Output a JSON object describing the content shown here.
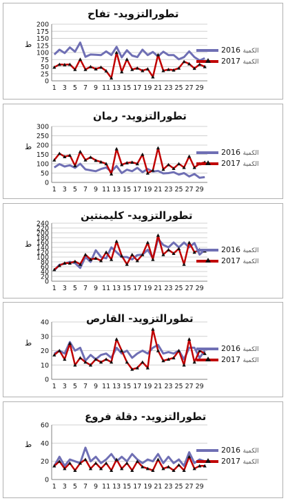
{
  "legend_label": "الكمية",
  "chart_data": [
    {
      "type": "line",
      "title": "تطورالتزويد- تفاح",
      "ylabel": "ط",
      "ylim": [
        0,
        200
      ],
      "yticks": [
        0,
        25,
        50,
        75,
        100,
        125,
        150,
        175,
        200
      ],
      "x": [
        1,
        2,
        3,
        4,
        5,
        6,
        7,
        8,
        9,
        10,
        11,
        12,
        13,
        14,
        15,
        16,
        17,
        18,
        19,
        20,
        21,
        22,
        23,
        24,
        25,
        26,
        27,
        28,
        29,
        30
      ],
      "xticks": [
        1,
        3,
        5,
        7,
        9,
        11,
        13,
        15,
        17,
        19,
        21,
        23,
        25,
        27,
        29
      ],
      "series": [
        {
          "name": "2016",
          "color": "#6f6fb4",
          "values": [
            93,
            110,
            98,
            118,
            103,
            135,
            85,
            93,
            92,
            91,
            104,
            91,
            120,
            83,
            108,
            89,
            84,
            110,
            91,
            102,
            86,
            103,
            91,
            91,
            76,
            84,
            104,
            84,
            72,
            80
          ]
        },
        {
          "name": "2017",
          "color": "#c00000",
          "marker": "triangle",
          "values": [
            48,
            58,
            57,
            58,
            40,
            76,
            40,
            50,
            42,
            48,
            35,
            10,
            100,
            32,
            76,
            40,
            45,
            36,
            42,
            14,
            92,
            36,
            40,
            38,
            45,
            68,
            60,
            44,
            58,
            50
          ]
        }
      ]
    },
    {
      "type": "line",
      "title": "تطورالتزويد- رمان",
      "ylabel": "ط",
      "ylim": [
        0,
        300
      ],
      "yticks": [
        0,
        50,
        100,
        150,
        200,
        250,
        300
      ],
      "x": [
        1,
        2,
        3,
        4,
        5,
        6,
        7,
        8,
        9,
        10,
        11,
        12,
        13,
        14,
        15,
        16,
        17,
        18,
        19,
        20,
        21,
        22,
        23,
        24,
        25,
        26,
        27,
        28,
        29,
        30
      ],
      "xticks": [
        1,
        3,
        5,
        7,
        9,
        11,
        13,
        15,
        17,
        19,
        21,
        23,
        25,
        27,
        29
      ],
      "series": [
        {
          "name": "2016",
          "color": "#6f6fb4",
          "values": [
            80,
            98,
            85,
            92,
            78,
            100,
            70,
            65,
            60,
            72,
            80,
            58,
            88,
            50,
            68,
            60,
            78,
            55,
            72,
            58,
            62,
            48,
            50,
            55,
            42,
            50,
            32,
            45,
            25,
            28
          ]
        },
        {
          "name": "2017",
          "color": "#c00000",
          "marker": "triangle",
          "values": [
            120,
            155,
            138,
            145,
            90,
            165,
            120,
            135,
            118,
            110,
            100,
            45,
            180,
            95,
            105,
            108,
            100,
            150,
            50,
            65,
            185,
            70,
            95,
            75,
            100,
            80,
            140,
            80,
            100,
            108
          ]
        }
      ]
    },
    {
      "type": "line",
      "title": "تطورالتزويد- كليمنتين",
      "ylabel": "ط",
      "ylim": [
        0,
        240
      ],
      "yticks": [
        0,
        20,
        40,
        60,
        80,
        100,
        120,
        140,
        160,
        180,
        200,
        220,
        240
      ],
      "x": [
        1,
        2,
        3,
        4,
        5,
        6,
        7,
        8,
        9,
        10,
        11,
        12,
        13,
        14,
        15,
        16,
        17,
        18,
        19,
        20,
        21,
        22,
        23,
        24,
        25,
        26,
        27,
        28,
        29,
        30
      ],
      "xticks": [
        1,
        3,
        5,
        7,
        9,
        11,
        13,
        15,
        17,
        19,
        21,
        23,
        25,
        27,
        29
      ],
      "series": [
        {
          "name": "2016",
          "color": "#6f6fb4",
          "values": [
            45,
            68,
            72,
            80,
            75,
            55,
            100,
            80,
            128,
            100,
            95,
            140,
            120,
            100,
            100,
            90,
            108,
            110,
            130,
            95,
            175,
            150,
            140,
            160,
            140,
            160,
            140,
            158,
            110,
            130
          ]
        },
        {
          "name": "2017",
          "color": "#c00000",
          "marker": "triangle",
          "values": [
            48,
            65,
            75,
            75,
            82,
            70,
            110,
            90,
            95,
            85,
            120,
            90,
            165,
            105,
            70,
            110,
            85,
            110,
            160,
            90,
            190,
            110,
            130,
            115,
            135,
            70,
            160,
            120,
            130,
            125
          ]
        }
      ]
    },
    {
      "type": "line",
      "title": "تطورالتزويد- القارص",
      "ylabel": "ط",
      "ylim": [
        0,
        40
      ],
      "yticks": [
        0,
        10,
        20,
        30,
        40
      ],
      "x": [
        1,
        2,
        3,
        4,
        5,
        6,
        7,
        8,
        9,
        10,
        11,
        12,
        13,
        14,
        15,
        16,
        17,
        18,
        19,
        20,
        21,
        22,
        23,
        24,
        25,
        26,
        27,
        28,
        29,
        30
      ],
      "xticks": [
        1,
        3,
        5,
        7,
        9,
        11,
        13,
        15,
        17,
        19,
        21,
        23,
        25,
        27,
        29
      ],
      "series": [
        {
          "name": "2016",
          "color": "#6f6fb4",
          "values": [
            18,
            20,
            18,
            26,
            20,
            22,
            13,
            17,
            14,
            17,
            18,
            15,
            22,
            18,
            20,
            15,
            18,
            20,
            18,
            22,
            24,
            18,
            19,
            18,
            20,
            14,
            22,
            22,
            15,
            20
          ]
        },
        {
          "name": "2017",
          "color": "#c00000",
          "marker": "triangle",
          "values": [
            17,
            20,
            14,
            25,
            10,
            15,
            12,
            10,
            14,
            12,
            14,
            12,
            28,
            20,
            12,
            7,
            8,
            12,
            8,
            35,
            20,
            13,
            14,
            15,
            20,
            10,
            28,
            12,
            20,
            18
          ]
        }
      ]
    },
    {
      "type": "line",
      "title": "تطورالتزويد- دقلة فروع",
      "ylabel": "ط",
      "ylim": [
        0,
        60
      ],
      "yticks": [
        0,
        20,
        40,
        60
      ],
      "x": [
        1,
        2,
        3,
        4,
        5,
        6,
        7,
        8,
        9,
        10,
        11,
        12,
        13,
        14,
        15,
        16,
        17,
        18,
        19,
        20,
        21,
        22,
        23,
        24,
        25,
        26,
        27,
        28,
        29,
        30
      ],
      "xticks": [
        1,
        3,
        5,
        7,
        9,
        11,
        13,
        15,
        17,
        19,
        21,
        23,
        25,
        27,
        29
      ],
      "series": [
        {
          "name": "2016",
          "color": "#6f6fb4",
          "values": [
            15,
            25,
            15,
            22,
            20,
            18,
            35,
            20,
            25,
            18,
            22,
            28,
            20,
            25,
            20,
            28,
            22,
            18,
            22,
            20,
            28,
            18,
            25,
            18,
            22,
            15,
            30,
            18,
            22,
            20
          ]
        },
        {
          "name": "2017",
          "color": "#c00000",
          "marker": "triangle",
          "values": [
            15,
            20,
            12,
            18,
            10,
            18,
            22,
            12,
            18,
            12,
            18,
            10,
            22,
            12,
            18,
            10,
            20,
            14,
            12,
            10,
            22,
            12,
            14,
            10,
            16,
            10,
            25,
            12,
            15,
            15
          ]
        }
      ]
    }
  ]
}
